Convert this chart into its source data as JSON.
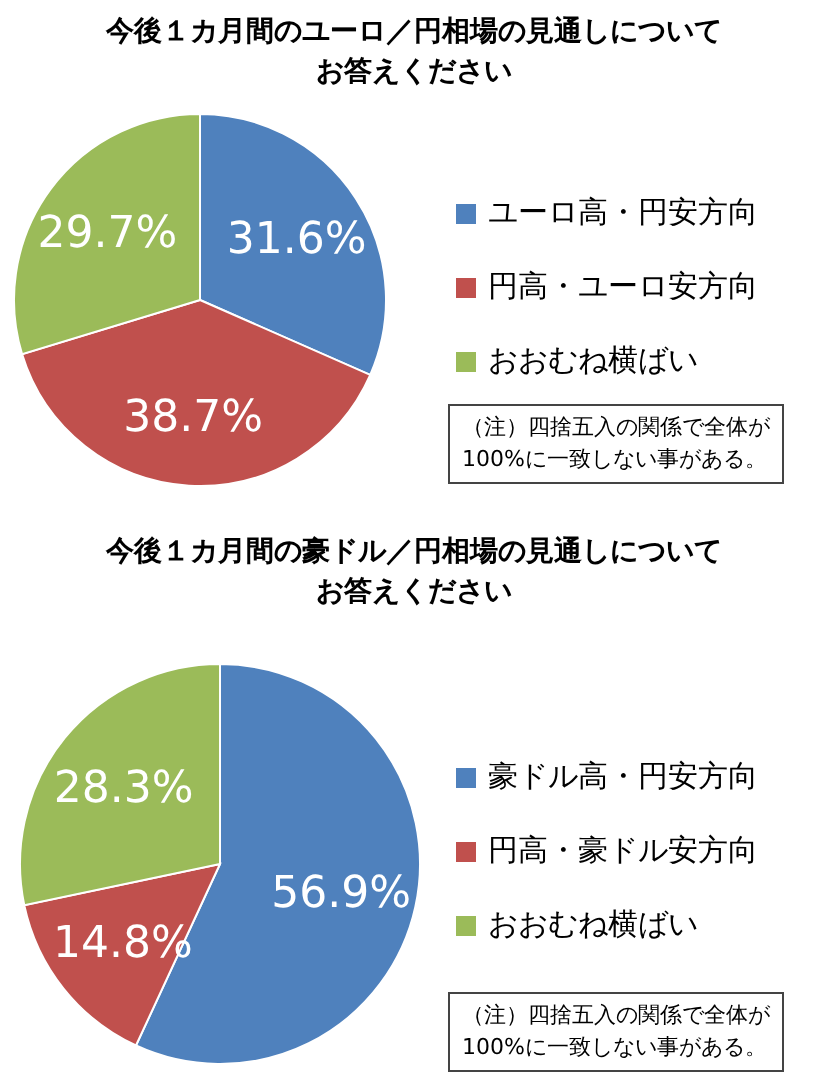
{
  "chart_data": [
    {
      "type": "pie",
      "title": "今後１カ月間のユーロ／円相場の見通しについてお答えください",
      "value_labels": [
        "31.6%",
        "38.7%",
        "29.7%"
      ],
      "categories": [
        "ユーロ高・円安方向",
        "円高・ユーロ安方向",
        "おおむね横ばい"
      ],
      "values": [
        31.6,
        38.7,
        29.7
      ],
      "colors": [
        "#4f81bd",
        "#c0504d",
        "#9bbb59"
      ],
      "legend": "right",
      "annotations": [
        "（注）四捨五入の関係で全体が\n100%に一致しない事がある。"
      ]
    },
    {
      "type": "pie",
      "title": "今後１カ月間の豪ドル／円相場の見通しについてお答えください",
      "value_labels": [
        "56.9%",
        "14.8%",
        "28.3%"
      ],
      "categories": [
        "豪ドル高・円安方向",
        "円高・豪ドル安方向",
        "おおむね横ばい"
      ],
      "values": [
        56.9,
        14.8,
        28.3
      ],
      "colors": [
        "#4f81bd",
        "#c0504d",
        "#9bbb59"
      ],
      "legend": "right",
      "annotations": [
        "（注）四捨五入の関係で全体が\n100%に一致しない事がある。"
      ]
    }
  ]
}
